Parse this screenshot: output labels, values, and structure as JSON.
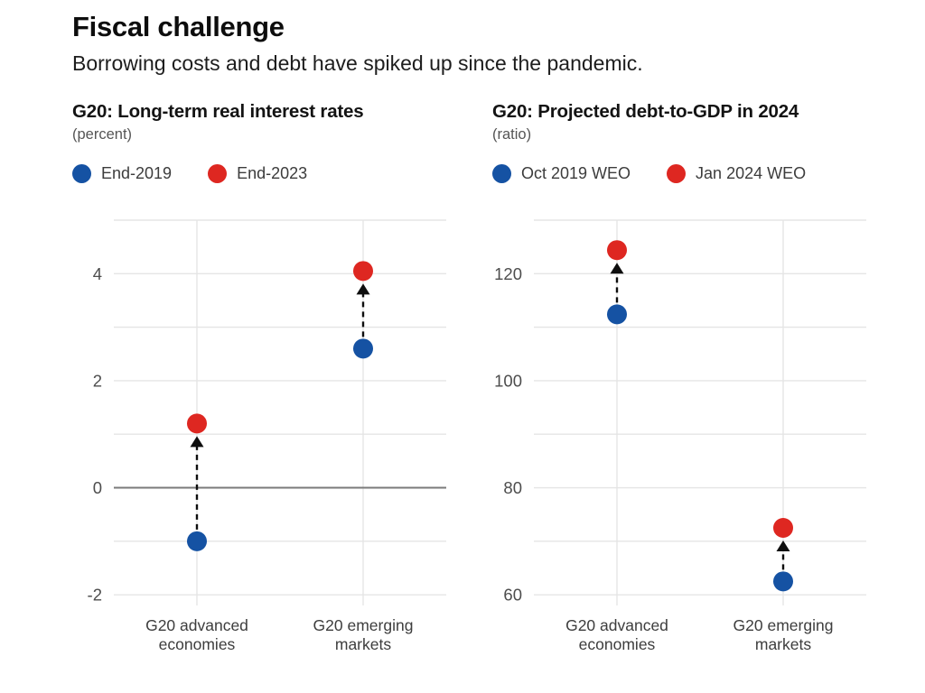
{
  "page": {
    "title": "Fiscal challenge",
    "subtitle": "Borrowing costs and debt have spiked up since the pandemic."
  },
  "colors": {
    "series_old": "#1552A3",
    "series_new": "#DE2721",
    "grid": "#E5E5E5",
    "zero_line": "#7A7A7A",
    "arrow": "#0E0E0E",
    "tick_text": "#4D4D4D",
    "category_text": "#3D3D3D"
  },
  "chart_data": [
    {
      "type": "scatter",
      "title": "G20: Long-term real interest rates",
      "unit_label": "(percent)",
      "legend_position": "top",
      "grid": true,
      "categories": [
        [
          "G20 advanced",
          "economies"
        ],
        [
          "G20 emerging",
          "markets"
        ]
      ],
      "series": [
        {
          "name": "End-2019",
          "color_key": "series_old",
          "values": [
            -1.0,
            2.6
          ]
        },
        {
          "name": "End-2023",
          "color_key": "series_new",
          "values": [
            1.2,
            4.05
          ]
        }
      ],
      "ylim": [
        -2.2,
        5.0
      ],
      "grid_step": 1,
      "labeled_ticks": [
        4,
        2,
        0,
        -2
      ],
      "zero_line": true,
      "arrows": "up from older series to newer series"
    },
    {
      "type": "scatter",
      "title": "G20: Projected debt-to-GDP in 2024",
      "unit_label": "(ratio)",
      "legend_position": "top",
      "grid": true,
      "categories": [
        [
          "G20 advanced",
          "economies"
        ],
        [
          "G20 emerging",
          "markets"
        ]
      ],
      "series": [
        {
          "name": "Oct 2019 WEO",
          "color_key": "series_old",
          "values": [
            112.4,
            62.5
          ]
        },
        {
          "name": "Jan 2024 WEO",
          "color_key": "series_new",
          "values": [
            124.4,
            72.5
          ]
        }
      ],
      "ylim": [
        58,
        130
      ],
      "grid_step": 10,
      "labeled_ticks": [
        120,
        100,
        80,
        60
      ],
      "zero_line": false,
      "arrows": "up from older series to newer series"
    }
  ]
}
